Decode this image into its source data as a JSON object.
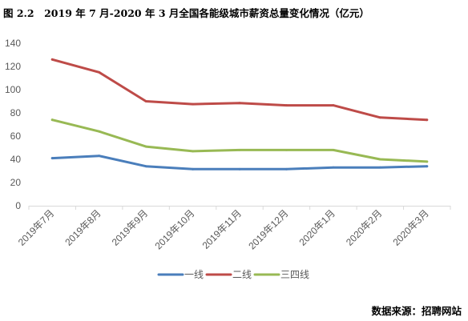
{
  "figure": {
    "title": "图 2.2　2019 年 7 月-2020 年 3 月全国各能级城市薪资总量变化情况（亿元）",
    "source": "数据来源：招聘网站"
  },
  "chart_data": {
    "type": "line",
    "title": "",
    "xlabel": "",
    "ylabel": "",
    "categories": [
      "2019年7月",
      "2019年8月",
      "2019年9月",
      "2019年10月",
      "2019年11月",
      "2019年12月",
      "2020年1月",
      "2020年2月",
      "2020年3月"
    ],
    "ylim": [
      0,
      140
    ],
    "yticks": [
      0,
      20,
      40,
      60,
      80,
      100,
      120,
      140
    ],
    "grid": false,
    "legend_position": "bottom",
    "series": [
      {
        "name": "一线",
        "color": "#4A7EBB",
        "values": [
          41,
          43,
          34,
          31.5,
          31.5,
          31.5,
          33,
          33,
          34
        ]
      },
      {
        "name": "二线",
        "color": "#BE4B48",
        "values": [
          126,
          115,
          90,
          87.5,
          88.5,
          86.5,
          86.5,
          76,
          74
        ]
      },
      {
        "name": "三四线",
        "color": "#98B954",
        "values": [
          74,
          64,
          51,
          47,
          48,
          48,
          48,
          40,
          38
        ]
      }
    ]
  }
}
